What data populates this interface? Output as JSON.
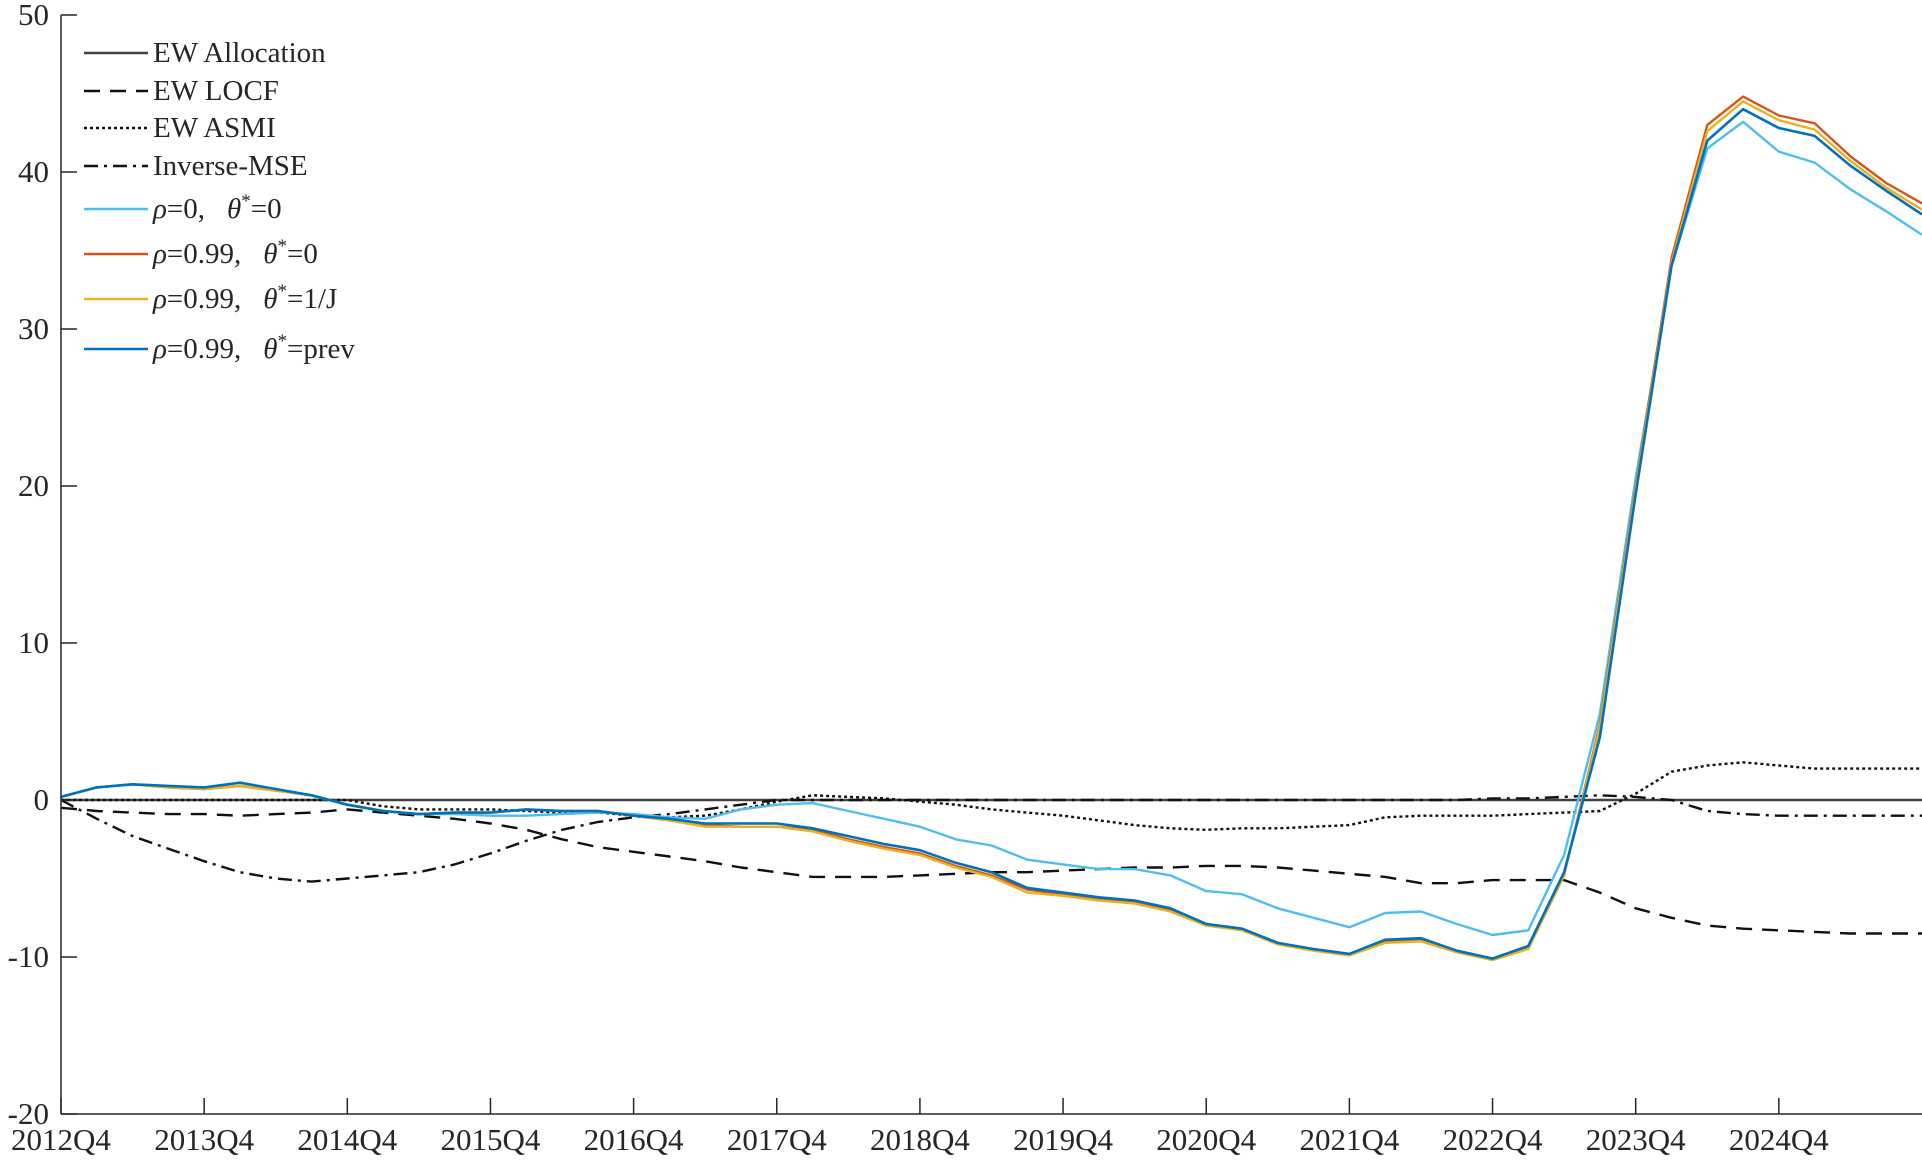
{
  "chart_data": {
    "type": "line",
    "title": "",
    "xlabel": "",
    "ylabel": "",
    "ylim": [
      -20,
      50
    ],
    "yticks": [
      -20,
      -10,
      0,
      10,
      20,
      30,
      40,
      50
    ],
    "xrange": [
      0,
      52
    ],
    "xticks": [
      {
        "pos": 0,
        "label": "2012Q4"
      },
      {
        "pos": 4,
        "label": "2013Q4"
      },
      {
        "pos": 8,
        "label": "2014Q4"
      },
      {
        "pos": 12,
        "label": "2015Q4"
      },
      {
        "pos": 16,
        "label": "2016Q4"
      },
      {
        "pos": 20,
        "label": "2017Q4"
      },
      {
        "pos": 24,
        "label": "2018Q4"
      },
      {
        "pos": 28,
        "label": "2019Q4"
      },
      {
        "pos": 32,
        "label": "2020Q4"
      },
      {
        "pos": 36,
        "label": "2021Q4"
      },
      {
        "pos": 40,
        "label": "2022Q4"
      },
      {
        "pos": 44,
        "label": "2023Q4"
      },
      {
        "pos": 48,
        "label": "2024Q4"
      }
    ],
    "grid": false,
    "legend_position": "top-left",
    "x": [
      0,
      1,
      2,
      3,
      4,
      5,
      6,
      7,
      8,
      9,
      10,
      11,
      12,
      13,
      14,
      15,
      16,
      17,
      18,
      19,
      20,
      21,
      22,
      23,
      24,
      25,
      26,
      27,
      28,
      29,
      30,
      31,
      32,
      33,
      34,
      35,
      36,
      37,
      38,
      39,
      40,
      41,
      42,
      43,
      44,
      45,
      46,
      47,
      48,
      49,
      50,
      51,
      52
    ],
    "series": [
      {
        "name": "EW Allocation",
        "color": "#404040",
        "dash": "solid",
        "width": 2.4,
        "values": [
          0,
          0,
          0,
          0,
          0,
          0,
          0,
          0,
          0,
          0,
          0,
          0,
          0,
          0,
          0,
          0,
          0,
          0,
          0,
          0,
          0,
          0,
          0,
          0,
          0,
          0,
          0,
          0,
          0,
          0,
          0,
          0,
          0,
          0,
          0,
          0,
          0,
          0,
          0,
          0,
          0,
          0,
          0,
          0,
          0,
          0,
          0,
          0,
          0,
          0,
          0,
          0,
          0
        ]
      },
      {
        "name": "EW LOCF",
        "color": "#111111",
        "dash": "dashed",
        "width": 2.4,
        "values": [
          -0.5,
          -0.7,
          -0.8,
          -0.9,
          -0.9,
          -1.0,
          -0.9,
          -0.8,
          -0.6,
          -0.8,
          -1.0,
          -1.2,
          -1.5,
          -1.9,
          -2.5,
          -3.0,
          -3.3,
          -3.6,
          -3.9,
          -4.3,
          -4.6,
          -4.9,
          -4.9,
          -4.9,
          -4.8,
          -4.7,
          -4.6,
          -4.6,
          -4.5,
          -4.4,
          -4.3,
          -4.3,
          -4.2,
          -4.2,
          -4.3,
          -4.5,
          -4.7,
          -4.9,
          -5.3,
          -5.3,
          -5.1,
          -5.1,
          -5.1,
          -5.9,
          -6.9,
          -7.5,
          -8.0,
          -8.2,
          -8.3,
          -8.4,
          -8.5,
          -8.5,
          -8.5
        ]
      },
      {
        "name": "EW ASMI",
        "color": "#111111",
        "dash": "dotted",
        "width": 2.4,
        "values": [
          0,
          0,
          0,
          0,
          0,
          0,
          0,
          0,
          0,
          -0.4,
          -0.6,
          -0.6,
          -0.6,
          -0.7,
          -0.8,
          -0.8,
          -1.0,
          -1.1,
          -1.0,
          -0.6,
          -0.1,
          0.3,
          0.2,
          0.1,
          -0.1,
          -0.3,
          -0.6,
          -0.8,
          -1.0,
          -1.3,
          -1.6,
          -1.8,
          -1.9,
          -1.8,
          -1.8,
          -1.7,
          -1.6,
          -1.1,
          -1.0,
          -1.0,
          -1.0,
          -0.9,
          -0.8,
          -0.7,
          0.4,
          1.8,
          2.2,
          2.4,
          2.2,
          2.0,
          2.0,
          2.0,
          2.0
        ]
      },
      {
        "name": "Inverse-MSE",
        "color": "#111111",
        "dash": "dashdot",
        "width": 2.4,
        "values": [
          0,
          -1.2,
          -2.3,
          -3.1,
          -3.9,
          -4.6,
          -5.0,
          -5.2,
          -5.0,
          -4.8,
          -4.6,
          -4.1,
          -3.4,
          -2.6,
          -1.9,
          -1.4,
          -1.1,
          -0.9,
          -0.6,
          -0.3,
          0,
          0,
          0,
          0,
          0,
          0,
          0,
          0,
          0,
          0,
          0,
          0,
          0,
          0,
          0,
          0,
          0,
          0,
          0,
          0,
          0.1,
          0.1,
          0.2,
          0.3,
          0.2,
          0,
          -0.7,
          -0.9,
          -1.0,
          -1.0,
          -1.0,
          -1.0,
          -1.0
        ]
      },
      {
        "name": "ρ=0,  θ*=0",
        "color": "#4dbeee",
        "dash": "solid",
        "width": 2.4,
        "values": [
          0.2,
          0.8,
          1.0,
          0.8,
          0.7,
          0.9,
          0.6,
          0.3,
          -0.3,
          -0.7,
          -0.9,
          -0.9,
          -1.0,
          -1.0,
          -0.9,
          -0.8,
          -0.9,
          -1.1,
          -1.2,
          -0.6,
          -0.3,
          -0.2,
          -0.7,
          -1.2,
          -1.7,
          -2.5,
          -2.9,
          -3.8,
          -4.1,
          -4.4,
          -4.4,
          -4.8,
          -5.8,
          -6.0,
          -6.9,
          -7.5,
          -8.1,
          -7.2,
          -7.1,
          -7.9,
          -8.6,
          -8.3,
          -3.5,
          5.5,
          20.5,
          34.0,
          41.5,
          43.2,
          41.3,
          40.6,
          38.9,
          37.5,
          36.0
        ]
      },
      {
        "name": "ρ=0.99,  θ*=0",
        "color": "#d95319",
        "dash": "solid",
        "width": 2.4,
        "values": [
          0.2,
          0.8,
          1.0,
          0.8,
          0.7,
          0.9,
          0.6,
          0.3,
          -0.3,
          -0.7,
          -0.9,
          -0.8,
          -0.8,
          -0.6,
          -0.7,
          -0.7,
          -1.0,
          -1.3,
          -1.6,
          -1.7,
          -1.7,
          -1.9,
          -2.5,
          -3.0,
          -3.4,
          -4.2,
          -4.8,
          -5.7,
          -6.0,
          -6.3,
          -6.5,
          -7.0,
          -7.9,
          -8.2,
          -9.1,
          -9.5,
          -9.8,
          -9.0,
          -8.9,
          -9.6,
          -10.1,
          -9.4,
          -4.8,
          4.8,
          20.0,
          34.5,
          43.0,
          44.8,
          43.6,
          43.1,
          41.0,
          39.3,
          38.0
        ]
      },
      {
        "name": "ρ=0.99,  θ*=1/J",
        "color": "#edb120",
        "dash": "solid",
        "width": 2.4,
        "values": [
          0.2,
          0.8,
          1.0,
          0.8,
          0.7,
          0.9,
          0.6,
          0.3,
          -0.3,
          -0.7,
          -0.9,
          -0.8,
          -0.8,
          -0.6,
          -0.7,
          -0.7,
          -1.0,
          -1.3,
          -1.7,
          -1.7,
          -1.7,
          -2.0,
          -2.6,
          -3.1,
          -3.5,
          -4.3,
          -4.9,
          -5.9,
          -6.1,
          -6.4,
          -6.6,
          -7.1,
          -8.0,
          -8.3,
          -9.2,
          -9.6,
          -9.9,
          -9.1,
          -9.0,
          -9.7,
          -10.2,
          -9.5,
          -4.8,
          4.6,
          19.8,
          34.2,
          42.6,
          44.5,
          43.3,
          42.7,
          40.7,
          39.0,
          37.6
        ]
      },
      {
        "name": "ρ=0.99,  θ*=prev",
        "color": "#0072bd",
        "dash": "solid",
        "width": 2.6,
        "values": [
          0.2,
          0.8,
          1.0,
          0.9,
          0.8,
          1.1,
          0.7,
          0.3,
          -0.3,
          -0.7,
          -0.9,
          -0.8,
          -0.8,
          -0.6,
          -0.7,
          -0.7,
          -1.0,
          -1.2,
          -1.5,
          -1.5,
          -1.5,
          -1.8,
          -2.3,
          -2.8,
          -3.2,
          -4.0,
          -4.6,
          -5.6,
          -5.9,
          -6.2,
          -6.4,
          -6.9,
          -7.9,
          -8.2,
          -9.1,
          -9.5,
          -9.8,
          -8.9,
          -8.8,
          -9.6,
          -10.1,
          -9.3,
          -4.6,
          4.0,
          19.5,
          34.0,
          42.0,
          44.0,
          42.8,
          42.3,
          40.4,
          38.8,
          37.3
        ]
      }
    ]
  },
  "legend_items": [
    {
      "plain": "EW Allocation"
    },
    {
      "plain": "EW LOCF"
    },
    {
      "plain": "EW ASMI"
    },
    {
      "plain": "Inverse-MSE"
    },
    {
      "rho": "ρ",
      "rho_val": "=0,",
      "theta": "θ",
      "star": "*",
      "theta_val": "=0"
    },
    {
      "rho": "ρ",
      "rho_val": "=0.99,",
      "theta": "θ",
      "star": "*",
      "theta_val": "=0"
    },
    {
      "rho": "ρ",
      "rho_val": "=0.99,",
      "theta": "θ",
      "star": "*",
      "theta_val": "=1/J"
    },
    {
      "rho": "ρ",
      "rho_val": "=0.99,",
      "theta": "θ",
      "star": "*",
      "theta_val": "=prev"
    }
  ]
}
